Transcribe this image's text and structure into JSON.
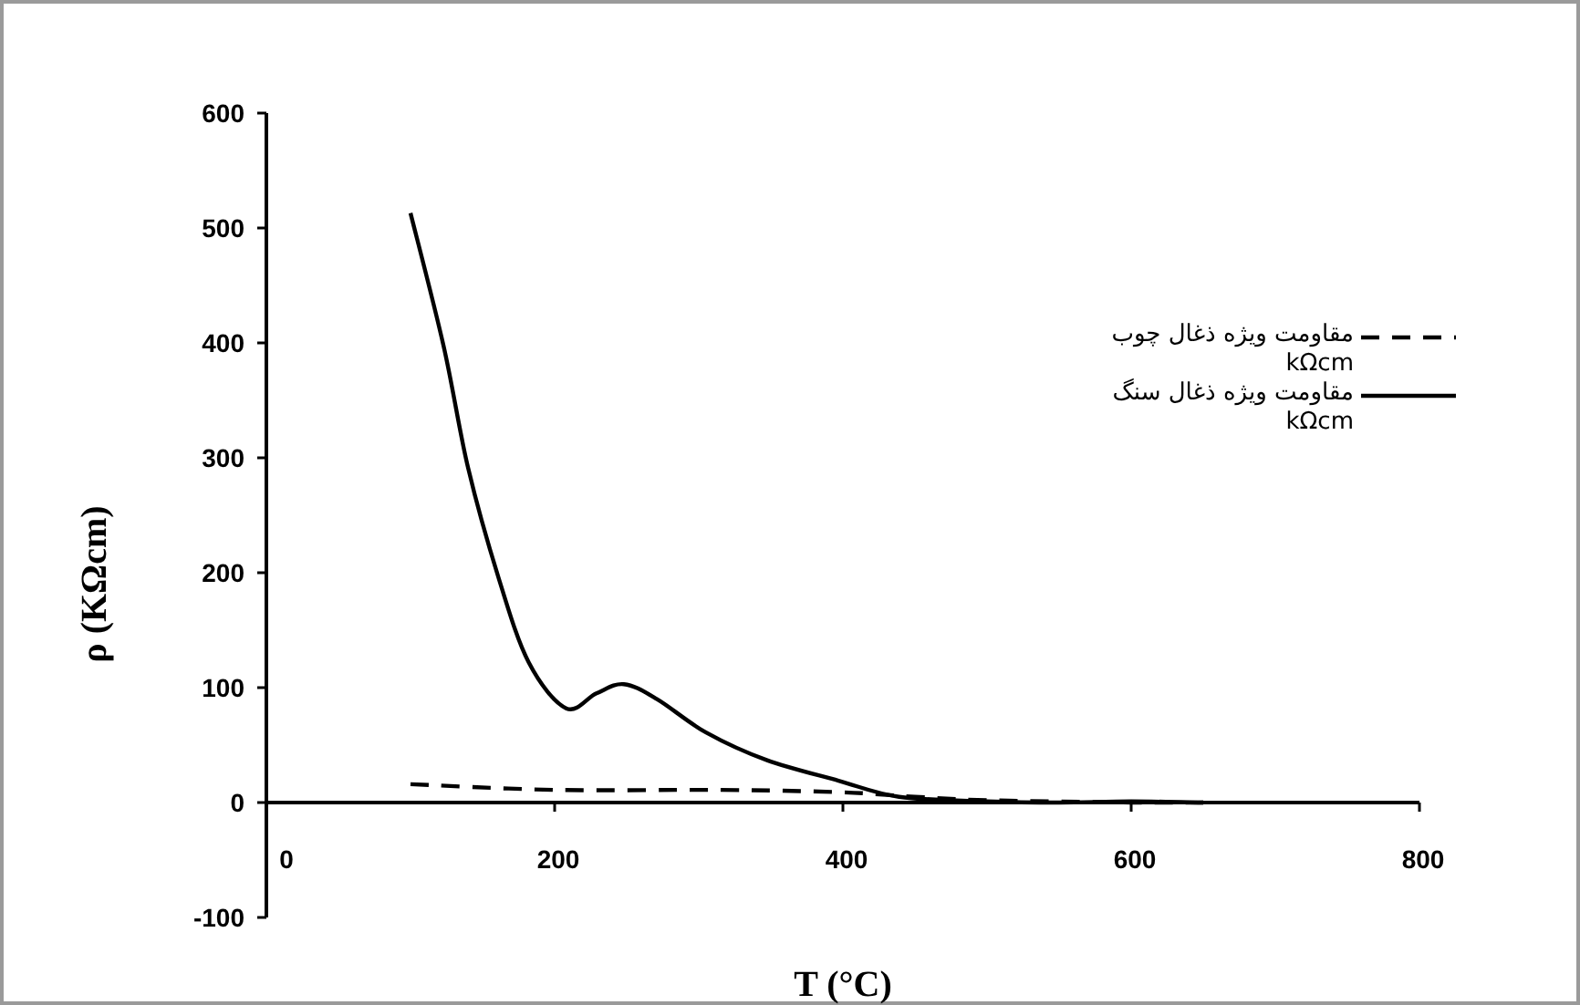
{
  "chart_data": {
    "type": "line",
    "xlabel": "T (°C)",
    "ylabel": "ρ (KΩcm)",
    "xlim": [
      0,
      800
    ],
    "ylim": [
      -100,
      600
    ],
    "xticks": [
      0,
      200,
      400,
      600,
      800
    ],
    "yticks": [
      -100,
      0,
      100,
      200,
      300,
      400,
      500,
      600
    ],
    "legend": "right",
    "series": [
      {
        "name": "مقاومت ویژه ذغال چوب kΩcm",
        "color": "#000000",
        "line_style": "dashed",
        "x": [
          100,
          200,
          314,
          398,
          450,
          500,
          600,
          650
        ],
        "values": [
          16,
          11,
          11,
          9,
          5,
          2,
          0,
          0
        ]
      },
      {
        "name": "مقاومت ویژه ذغال سنگ kΩcm",
        "color": "#000000",
        "line_style": "solid",
        "x": [
          100,
          123,
          140,
          161,
          182,
          208,
          229,
          248,
          271,
          305,
          347,
          397,
          439,
          500,
          550,
          600,
          650
        ],
        "values": [
          513,
          397,
          291,
          196,
          122,
          82,
          95,
          103,
          90,
          61,
          37,
          19,
          5,
          1,
          0,
          1,
          0
        ]
      }
    ]
  }
}
